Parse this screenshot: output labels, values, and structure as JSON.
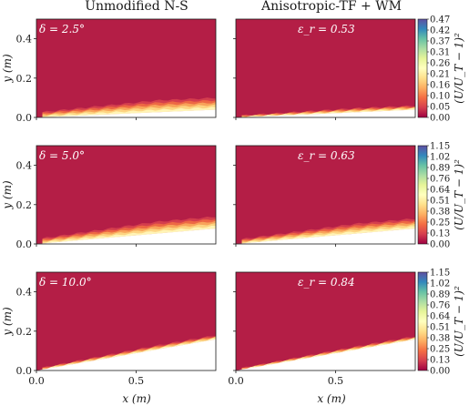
{
  "chart_data": {
    "type": "heatmap",
    "column_titles": [
      "Unmodified N-S",
      "Anisotropic-TF + WM"
    ],
    "xlabel": "x (m)",
    "ylabel": "y (m)",
    "xlim": [
      0.0,
      0.9
    ],
    "ylim": [
      0.0,
      0.5
    ],
    "x_ticks": [
      "0.0",
      "0.5"
    ],
    "y_ticks": [
      "0.0",
      "0.2",
      "0.4"
    ],
    "colorbar_label": "(U/U_T − 1)²",
    "colormap": "Spectral (dark red → yellow → blue)",
    "panels": [
      {
        "row": 0,
        "col": 0,
        "annotation": "δ = 2.5°",
        "slope_deg": 2.5,
        "band_thickness": 0.06
      },
      {
        "row": 0,
        "col": 1,
        "annotation": "ε_r = 0.53",
        "slope_deg": 2.5,
        "band_thickness": 0.02
      },
      {
        "row": 1,
        "col": 0,
        "annotation": "δ = 5.0°",
        "slope_deg": 5.0,
        "band_thickness": 0.06
      },
      {
        "row": 1,
        "col": 1,
        "annotation": "ε_r = 0.63",
        "slope_deg": 5.0,
        "band_thickness": 0.05
      },
      {
        "row": 2,
        "col": 0,
        "annotation": "δ = 10.0°",
        "slope_deg": 10.0,
        "band_thickness": 0.02
      },
      {
        "row": 2,
        "col": 1,
        "annotation": "ε_r = 0.84",
        "slope_deg": 10.0,
        "band_thickness": 0.015
      }
    ],
    "colorbars": [
      {
        "row": 0,
        "ticks": [
          "0.47",
          "0.42",
          "0.37",
          "0.31",
          "0.26",
          "0.21",
          "0.16",
          "0.10",
          "0.05",
          "0.00"
        ]
      },
      {
        "row": 1,
        "ticks": [
          "1.15",
          "1.02",
          "0.89",
          "0.76",
          "0.64",
          "0.51",
          "0.38",
          "0.25",
          "0.13",
          "0.00"
        ]
      },
      {
        "row": 2,
        "ticks": [
          "1.15",
          "1.02",
          "0.89",
          "0.76",
          "0.64",
          "0.51",
          "0.38",
          "0.25",
          "0.13",
          "0.00"
        ]
      }
    ]
  },
  "colors": {
    "background_field": "#b41e46",
    "colorbar_stops": [
      "#9e0142",
      "#d53e4f",
      "#f46d43",
      "#fdae61",
      "#fee08b",
      "#ffffbf",
      "#e6f598",
      "#abdda4",
      "#66c2a5",
      "#3288bd",
      "#5e4fa2"
    ],
    "band": [
      "#d6404e",
      "#ee6a43",
      "#f9a85c",
      "#fdd785",
      "#fff5b8"
    ]
  }
}
